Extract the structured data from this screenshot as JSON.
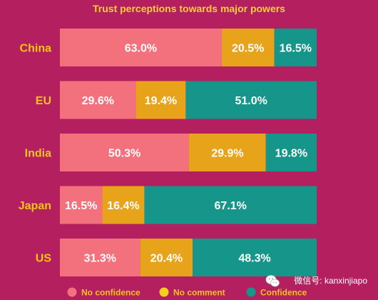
{
  "chart_data": {
    "type": "bar",
    "orientation": "horizontal",
    "stacked": true,
    "title": "Trust perceptions towards major powers",
    "categories": [
      "China",
      "EU",
      "India",
      "Japan",
      "US"
    ],
    "series": [
      {
        "name": "No confidence",
        "values": [
          63.0,
          29.6,
          50.3,
          16.5,
          31.3
        ],
        "labels": [
          "63.0%",
          "29.6%",
          "50.3%",
          "16.5%",
          "31.3%"
        ],
        "color": "#F2717C",
        "legend_color": "#F2717C"
      },
      {
        "name": "No comment",
        "values": [
          20.5,
          19.4,
          29.9,
          16.4,
          20.4
        ],
        "labels": [
          "20.5%",
          "19.4%",
          "29.9%",
          "16.4%",
          "20.4%"
        ],
        "color": "#E7A31A",
        "legend_color": "#F5D020"
      },
      {
        "name": "Confidence",
        "values": [
          16.5,
          51.0,
          19.8,
          67.1,
          48.3
        ],
        "labels": [
          "16.5%",
          "51.0%",
          "19.8%",
          "67.1%",
          "48.3%"
        ],
        "color": "#16958A",
        "legend_color": "#16958A"
      }
    ],
    "xlim": [
      0,
      100
    ],
    "grid": false,
    "legend": "bottom"
  },
  "colors": {
    "background": "#B4205F",
    "title": "#F6D02F",
    "category_label": "#F4C31C",
    "value_label": "#FFFFFF",
    "legend_text": "#F4C31C",
    "watermark_text": "#FFFFFF"
  },
  "watermark": {
    "icon": "wechat-icon",
    "text": "微信号: kanxinjiapo"
  }
}
